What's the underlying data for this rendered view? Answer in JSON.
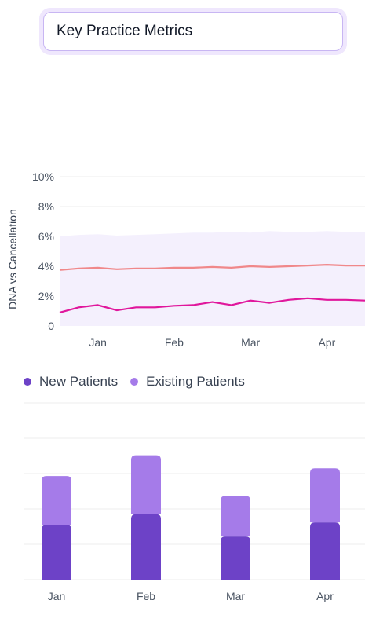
{
  "page": {
    "title": "Key Practice Metrics"
  },
  "colors": {
    "title_bg": "#efe7fd",
    "title_border": "#c8b6f3",
    "dna_line": "#e0179c",
    "cancellation_line": "#f0888a",
    "band_fill": "#f4f0fd",
    "new_patients": "#6d42c7",
    "existing_patients": "#a57be9",
    "grid": "#eeeeee",
    "axis_text": "#4b5563"
  },
  "chart_data": [
    {
      "type": "line",
      "ylabel": "DNA vs Cancellation",
      "ytick_labels": [
        "0",
        "2%",
        "4%",
        "6%",
        "8%",
        "10%"
      ],
      "yticks": [
        0,
        2,
        4,
        6,
        8,
        10
      ],
      "ylim": [
        0,
        10
      ],
      "xlim": [
        0,
        16
      ],
      "xtick_labels": [
        "Jan",
        "Feb",
        "Mar",
        "Apr"
      ],
      "xticks": [
        2,
        6,
        10,
        14
      ],
      "grid": true,
      "band": {
        "x": [
          0,
          1,
          2,
          3,
          4,
          5,
          6,
          7,
          8,
          9,
          10,
          11,
          12,
          13,
          14,
          15,
          16
        ],
        "lower": [
          0,
          0,
          0,
          0,
          0,
          0,
          0,
          0,
          0,
          0,
          0,
          0,
          0,
          0,
          0,
          0,
          0
        ],
        "upper": [
          6.0,
          6.1,
          6.15,
          6.05,
          6.1,
          6.15,
          6.2,
          6.25,
          6.25,
          6.3,
          6.25,
          6.35,
          6.3,
          6.3,
          6.35,
          6.3,
          6.3
        ]
      },
      "series": [
        {
          "x": [
            0,
            1,
            2,
            3,
            4,
            5,
            6,
            7,
            8,
            9,
            10,
            11,
            12,
            13,
            14,
            15,
            16
          ],
          "values": [
            3.75,
            3.85,
            3.9,
            3.8,
            3.85,
            3.85,
            3.9,
            3.9,
            3.95,
            3.9,
            4.0,
            3.95,
            4.0,
            4.05,
            4.1,
            4.05,
            4.05
          ]
        },
        {
          "x": [
            0,
            1,
            2,
            3,
            4,
            5,
            6,
            7,
            8,
            9,
            10,
            11,
            12,
            13,
            14,
            15,
            16
          ],
          "values": [
            0.9,
            1.25,
            1.4,
            1.05,
            1.25,
            1.25,
            1.35,
            1.4,
            1.6,
            1.4,
            1.7,
            1.55,
            1.75,
            1.85,
            1.75,
            1.75,
            1.7
          ]
        }
      ]
    },
    {
      "type": "bar",
      "stacked": true,
      "categories": [
        "Jan",
        "Feb",
        "Mar",
        "Apr"
      ],
      "ylim": [
        0,
        5
      ],
      "grid": true,
      "legend_position": "top-left",
      "series": [
        {
          "name": "New Patients",
          "values": [
            1.55,
            1.85,
            1.22,
            1.62
          ]
        },
        {
          "name": "Existing Patients",
          "values": [
            1.38,
            1.67,
            1.15,
            1.53
          ]
        }
      ]
    }
  ]
}
